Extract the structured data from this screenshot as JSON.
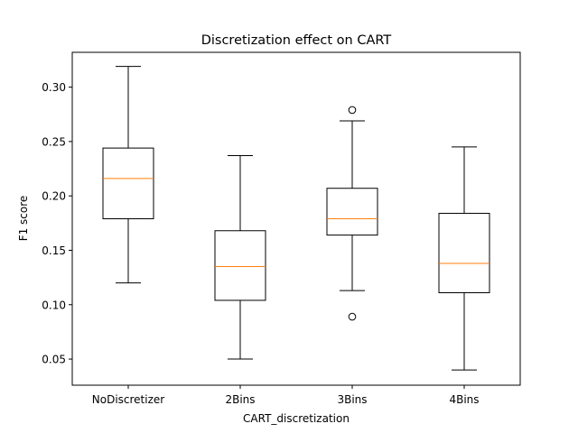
{
  "chart_data": {
    "type": "box",
    "title": "Discretization effect on CART",
    "xlabel": "CART_discretization",
    "ylabel": "F1 score",
    "ylim": [
      0.026,
      0.332
    ],
    "yticks": [
      0.05,
      0.1,
      0.15,
      0.2,
      0.25,
      0.3
    ],
    "ytick_labels": [
      "0.05",
      "0.10",
      "0.15",
      "0.20",
      "0.25",
      "0.30"
    ],
    "categories": [
      "NoDiscretizer",
      "2Bins",
      "3Bins",
      "4Bins"
    ],
    "boxes": [
      {
        "whisker_low": 0.12,
        "q1": 0.179,
        "median": 0.216,
        "q3": 0.244,
        "whisker_high": 0.319,
        "outliers": []
      },
      {
        "whisker_low": 0.05,
        "q1": 0.104,
        "median": 0.135,
        "q3": 0.168,
        "whisker_high": 0.237,
        "outliers": []
      },
      {
        "whisker_low": 0.113,
        "q1": 0.164,
        "median": 0.179,
        "q3": 0.207,
        "whisker_high": 0.269,
        "outliers": [
          0.279,
          0.089
        ]
      },
      {
        "whisker_low": 0.04,
        "q1": 0.111,
        "median": 0.138,
        "q3": 0.184,
        "whisker_high": 0.245,
        "outliers": []
      }
    ],
    "grid": false,
    "colors": {
      "box": "#000000",
      "median": "#ff7f0e",
      "background": "#ffffff"
    }
  }
}
